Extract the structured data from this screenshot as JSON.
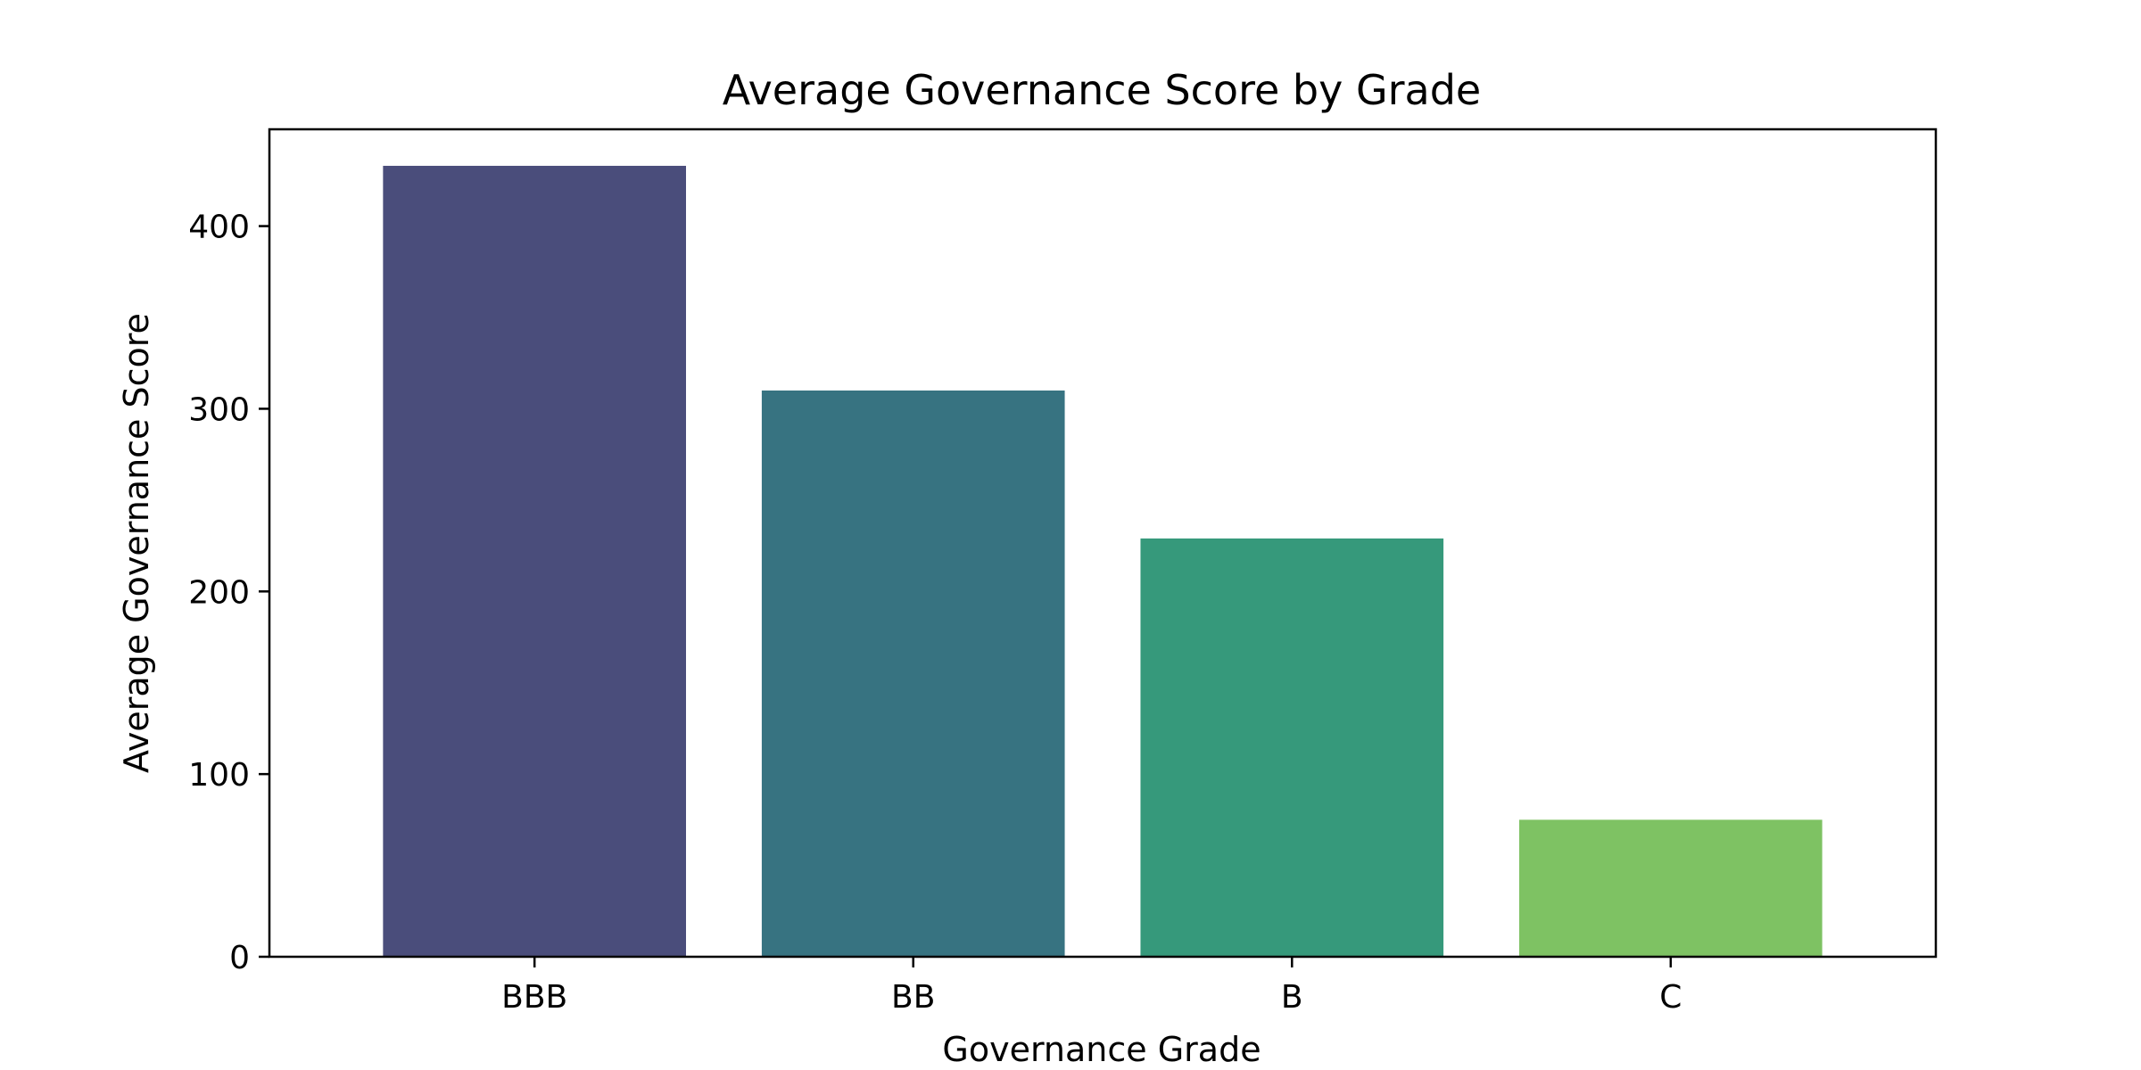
{
  "chart_data": {
    "type": "bar",
    "title": "Average Governance Score by Grade",
    "xlabel": "Governance Grade",
    "ylabel": "Average Governance Score",
    "categories": [
      "BBB",
      "BB",
      "B",
      "C"
    ],
    "values": [
      433,
      310,
      229,
      75
    ],
    "colors": [
      "#4a4d7b",
      "#377381",
      "#36997b",
      "#7ec263"
    ],
    "ylim": [
      0,
      453
    ],
    "yticks": [
      0,
      100,
      200,
      300,
      400
    ],
    "grid": false,
    "legend": "none"
  }
}
